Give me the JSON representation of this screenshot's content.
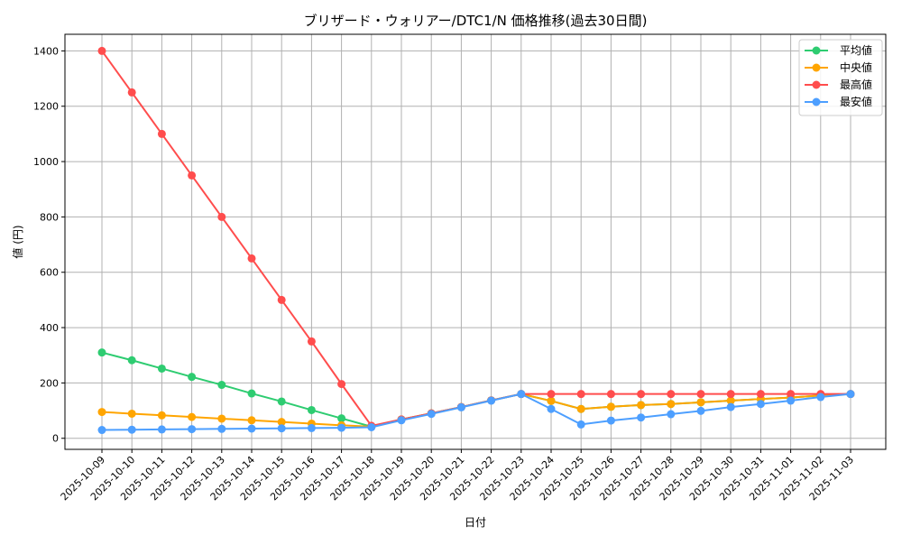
{
  "chart_data": {
    "type": "line",
    "title": "ブリザード・ウォリアー/DTC1/N 価格推移(過去30日間)",
    "xlabel": "日付",
    "ylabel": "値 (円)",
    "ylim": [
      -40,
      1460
    ],
    "yticks": [
      0,
      200,
      400,
      600,
      800,
      1000,
      1200,
      1400
    ],
    "grid": true,
    "legend_position": "top-right",
    "categories": [
      "2025-10-09",
      "2025-10-10",
      "2025-10-11",
      "2025-10-12",
      "2025-10-13",
      "2025-10-14",
      "2025-10-15",
      "2025-10-16",
      "2025-10-17",
      "2025-10-18",
      "2025-10-19",
      "2025-10-20",
      "2025-10-21",
      "2025-10-22",
      "2025-10-23",
      "2025-10-24",
      "2025-10-25",
      "2025-10-26",
      "2025-10-27",
      "2025-10-28",
      "2025-10-29",
      "2025-10-30",
      "2025-10-31",
      "2025-11-01",
      "2025-11-02",
      "2025-11-03"
    ],
    "series": [
      {
        "name": "平均値",
        "color": "#2ecc71",
        "values": [
          310,
          282,
          252,
          222,
          193,
          162,
          133,
          102,
          72,
          42,
          68,
          90,
          113,
          137,
          160,
          135,
          106,
          114,
          120,
          124,
          130,
          136,
          142,
          147,
          155,
          160
        ]
      },
      {
        "name": "中央値",
        "color": "#ffa500",
        "values": [
          95,
          89,
          83,
          77,
          71,
          65,
          59,
          53,
          47,
          42,
          68,
          90,
          113,
          137,
          160,
          135,
          106,
          114,
          120,
          124,
          130,
          136,
          142,
          147,
          155,
          160
        ]
      },
      {
        "name": "最高値",
        "color": "#ff4d4d",
        "values": [
          1400,
          1250,
          1100,
          950,
          800,
          650,
          500,
          350,
          196,
          45,
          68,
          90,
          113,
          137,
          160,
          160,
          160,
          160,
          160,
          160,
          160,
          160,
          160,
          160,
          160,
          160
        ]
      },
      {
        "name": "最安値",
        "color": "#4d9fff",
        "values": [
          30,
          31,
          32,
          33,
          34,
          35,
          36,
          37,
          38,
          40,
          65,
          88,
          112,
          136,
          160,
          106,
          50,
          64,
          75,
          87,
          99,
          113,
          124,
          136,
          149,
          160
        ]
      }
    ]
  }
}
